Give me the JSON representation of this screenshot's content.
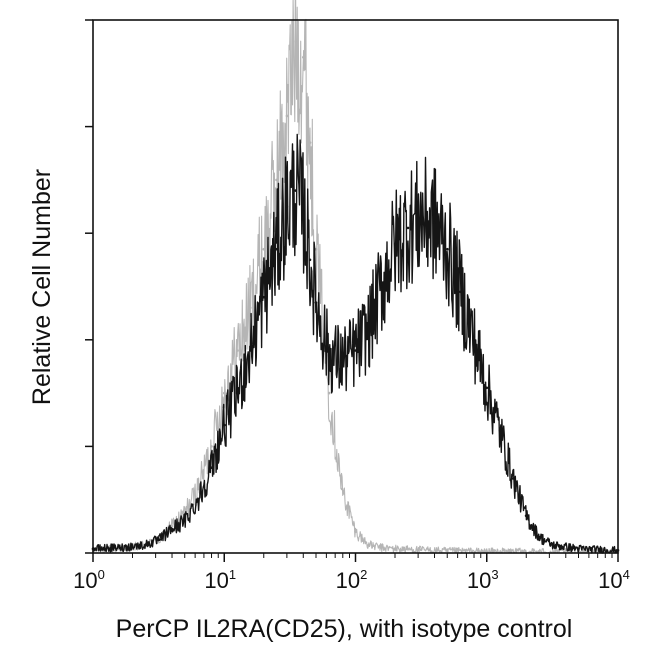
{
  "chart_data": {
    "type": "line",
    "title": "",
    "xlabel": "PerCP IL2RA(CD25), with isotype control",
    "ylabel": "Relative Cell Number",
    "x_scale": "log",
    "xlim": [
      1,
      10000
    ],
    "ylim": [
      0,
      100
    ],
    "x_ticks": [
      {
        "base": "10",
        "exp": "0",
        "value": 1
      },
      {
        "base": "10",
        "exp": "1",
        "value": 10
      },
      {
        "base": "10",
        "exp": "2",
        "value": 100
      },
      {
        "base": "10",
        "exp": "3",
        "value": 1000
      },
      {
        "base": "10",
        "exp": "4",
        "value": 10000
      }
    ],
    "y_ticks": [
      0,
      20,
      40,
      60,
      80,
      100
    ],
    "y_tick_labels_shown": false,
    "grid": false,
    "legend": "none",
    "series": [
      {
        "color": "#b5b5b5",
        "x": [
          1.0,
          1.6,
          2.5,
          3.2,
          4.0,
          5.0,
          6.3,
          8.0,
          10,
          12.6,
          15.8,
          20,
          25,
          30,
          35,
          40,
          45,
          50,
          63,
          79,
          100,
          126,
          158,
          200,
          316,
          501,
          1000,
          10000
        ],
        "y": [
          0.6,
          0.8,
          1.5,
          2.5,
          5.0,
          7.5,
          12,
          20,
          30,
          38,
          46,
          57,
          70,
          82,
          96,
          93,
          77,
          57,
          30,
          12,
          4,
          1.5,
          1.0,
          0.8,
          0.6,
          0.4,
          0.3,
          0.2
        ]
      },
      {
        "color": "#151515",
        "x": [
          1.0,
          1.6,
          2.5,
          3.2,
          4.0,
          5.0,
          6.3,
          8.0,
          10,
          12.6,
          15.8,
          20,
          25,
          30,
          35,
          40,
          45,
          50,
          63,
          79,
          100,
          126,
          158,
          200,
          251,
          316,
          398,
          501,
          631,
          794,
          1000,
          1259,
          1585,
          1995,
          2512,
          3162,
          5012,
          10000
        ],
        "y": [
          0.8,
          1.0,
          1.5,
          2.5,
          4.5,
          6,
          10,
          16,
          24,
          30,
          38,
          48,
          57,
          65,
          68,
          64,
          55,
          47,
          37,
          36,
          38,
          42,
          50,
          58,
          61,
          63,
          62,
          57,
          49,
          40,
          31,
          23,
          14,
          7,
          3,
          1.5,
          0.8,
          0.5
        ]
      }
    ]
  }
}
